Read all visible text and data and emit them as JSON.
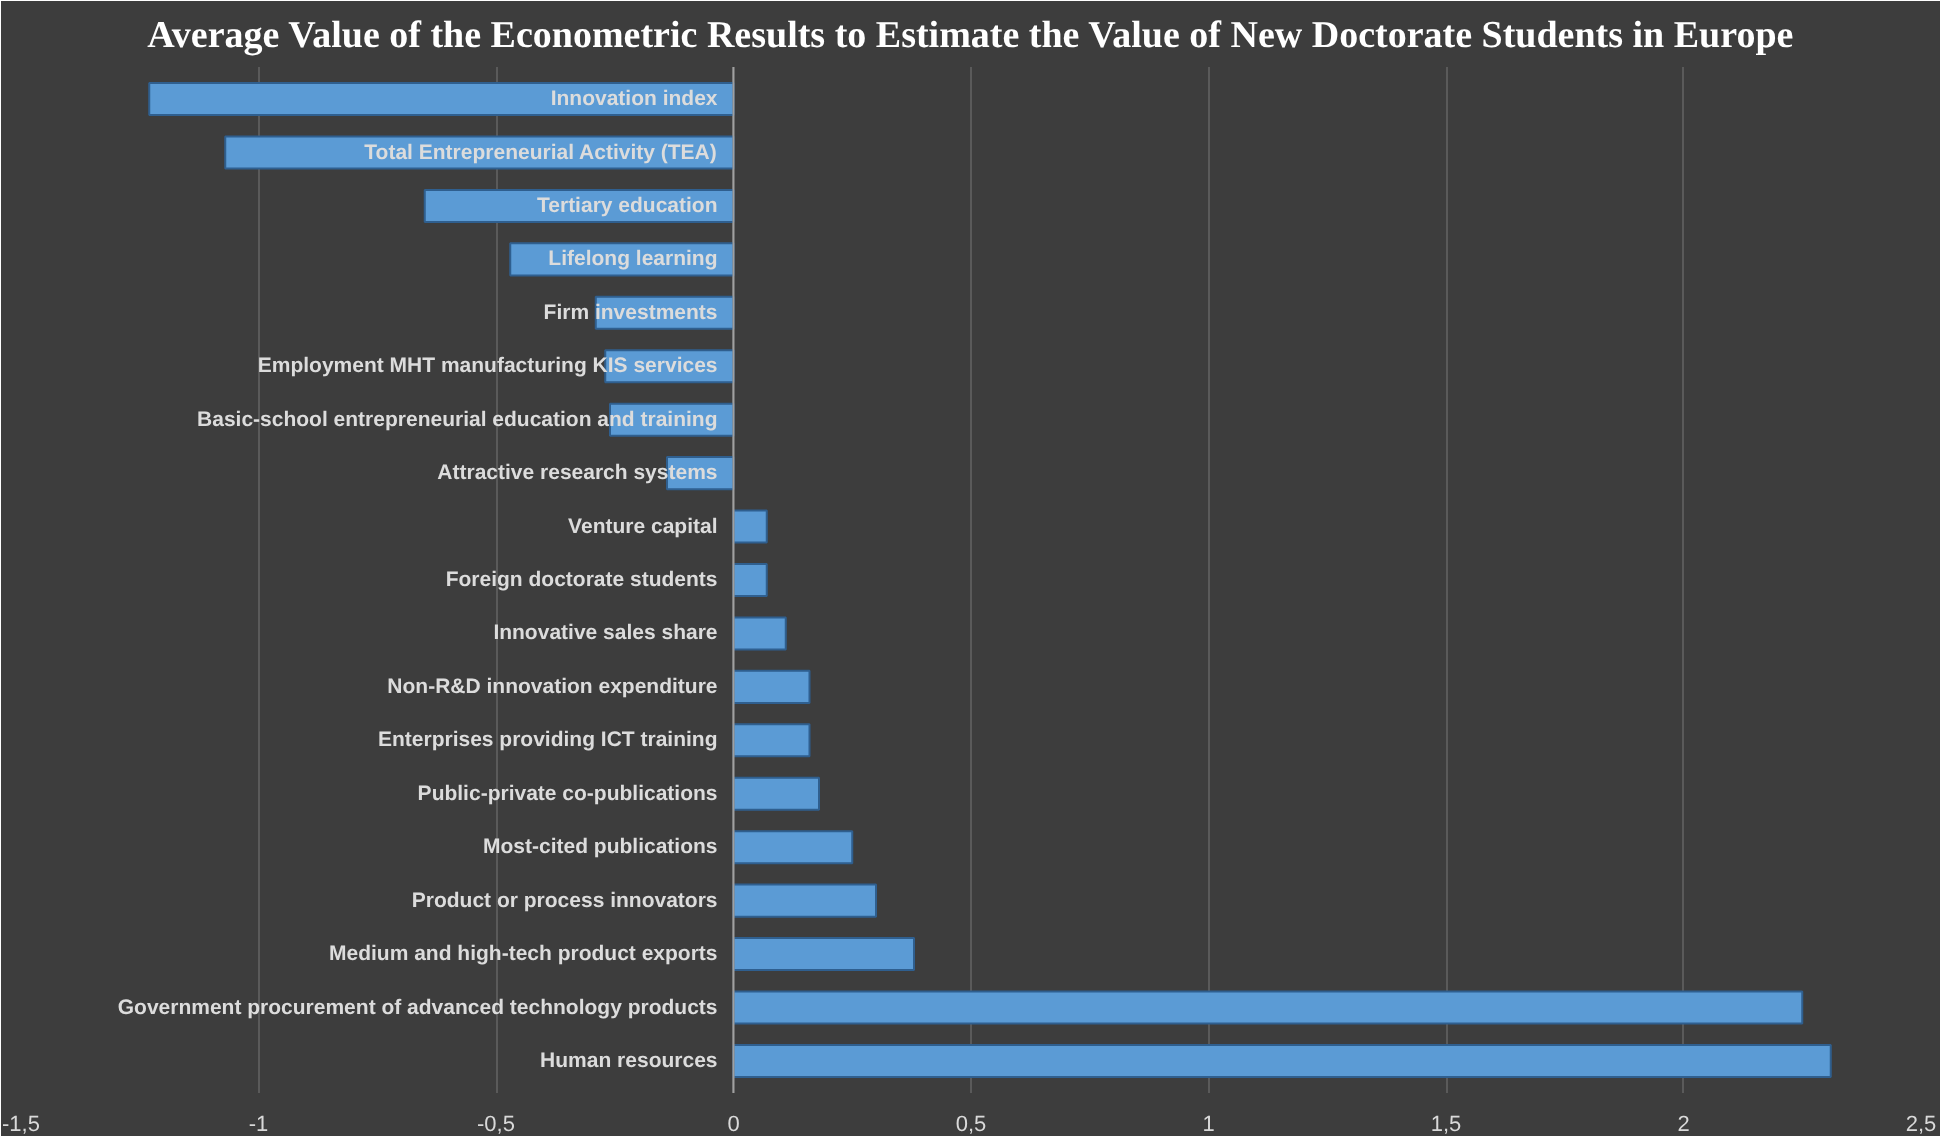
{
  "chart_data": {
    "type": "bar",
    "orientation": "horizontal",
    "title": "Average Value of the Econometric Results to Estimate the Value of New Doctorate Students in Europe",
    "categories": [
      "Innovation index",
      "Total Entrepreneurial Activity (TEA)",
      "Tertiary education",
      "Lifelong learning",
      "Firm investments",
      "Employment MHT manufacturing KIS services",
      "Basic-school entrepreneurial education and training",
      "Attractive research systems",
      "Venture capital",
      "Foreign doctorate students",
      "Innovative sales share",
      "Non-R&D innovation expenditure",
      "Enterprises providing ICT training",
      "Public-private co-publications",
      "Most-cited publications",
      "Product or process innovators",
      "Medium and high-tech product exports",
      "Government procurement of advanced technology products",
      "Human resources"
    ],
    "values": [
      -1.23,
      -1.07,
      -0.65,
      -0.47,
      -0.29,
      -0.27,
      -0.26,
      -0.14,
      0.07,
      0.07,
      0.11,
      0.16,
      0.16,
      0.18,
      0.25,
      0.3,
      0.38,
      2.25,
      2.31
    ],
    "color": "#5b9bd5",
    "xlim": [
      -1.5,
      2.5
    ],
    "xticks": [
      {
        "value": -1.5,
        "label": "-1,5"
      },
      -1,
      {
        "value": -0.5,
        "label": "-0,5"
      },
      0,
      {
        "value": 0.5,
        "label": "0,5"
      },
      1,
      {
        "value": 1.5,
        "label": "1,5"
      },
      2,
      {
        "value": 2.5,
        "label": "2,5"
      }
    ],
    "grid": "x"
  }
}
